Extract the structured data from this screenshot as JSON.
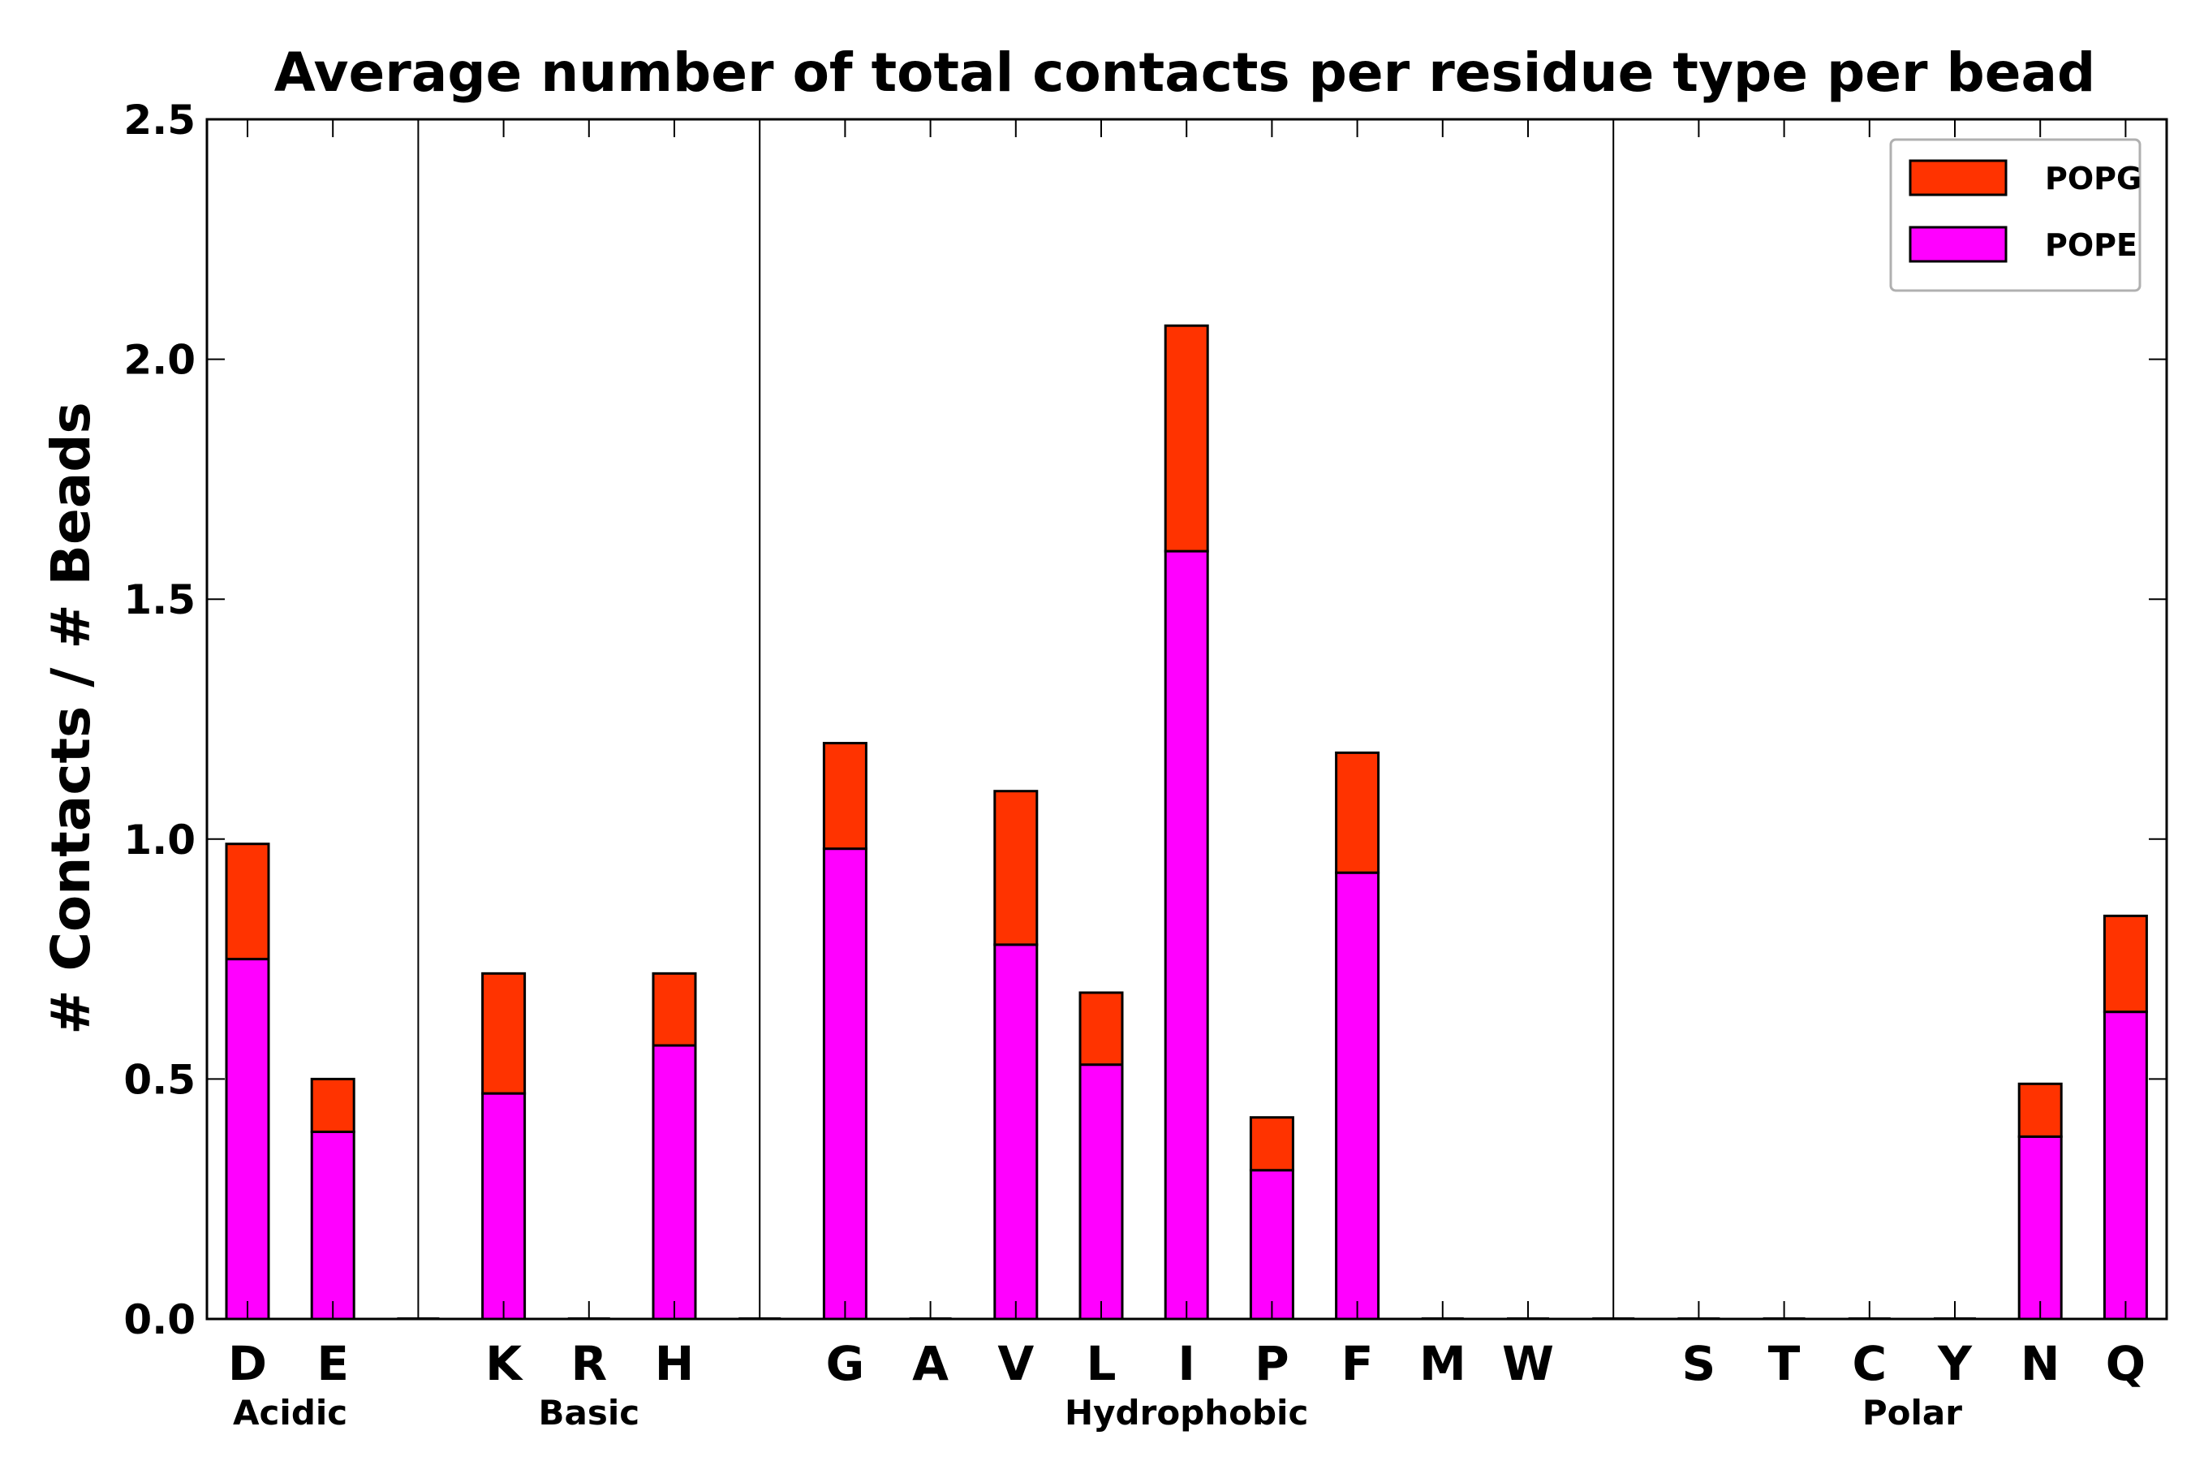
{
  "chart_data": {
    "type": "bar",
    "stacked": true,
    "title": "Average number of total contacts per residue type per bead",
    "xlabel": "",
    "ylabel": "# Contacts / # Beads",
    "ylim": [
      0,
      2.5
    ],
    "yticks": [
      "0.0",
      "0.5",
      "1.0",
      "1.5",
      "2.0",
      "2.5"
    ],
    "grid": false,
    "legend_position": "top-right",
    "categories": [
      "D",
      "E",
      "K",
      "R",
      "H",
      "G",
      "A",
      "V",
      "L",
      "I",
      "P",
      "F",
      "M",
      "W",
      "S",
      "T",
      "C",
      "Y",
      "N",
      "Q"
    ],
    "groups": [
      {
        "name": "Acidic",
        "members": [
          "D",
          "E"
        ]
      },
      {
        "name": "Basic",
        "members": [
          "K",
          "R",
          "H"
        ]
      },
      {
        "name": "Hydrophobic",
        "members": [
          "G",
          "A",
          "V",
          "L",
          "I",
          "P",
          "F",
          "M",
          "W"
        ]
      },
      {
        "name": "Polar",
        "members": [
          "S",
          "T",
          "C",
          "Y",
          "N",
          "Q"
        ]
      }
    ],
    "series": [
      {
        "name": "POPE",
        "color": "#ff00ff",
        "values": [
          0.75,
          0.39,
          0.47,
          0.0,
          0.57,
          0.98,
          0.0,
          0.78,
          0.53,
          1.6,
          0.31,
          0.93,
          0.0,
          0.0,
          0.0,
          0.0,
          0.0,
          0.0,
          0.38,
          0.64
        ]
      },
      {
        "name": "POPG",
        "color": "#ff3300",
        "values": [
          0.24,
          0.11,
          0.25,
          0.0,
          0.15,
          0.22,
          0.0,
          0.32,
          0.15,
          0.47,
          0.11,
          0.25,
          0.0,
          0.0,
          0.0,
          0.0,
          0.0,
          0.0,
          0.11,
          0.2
        ]
      }
    ],
    "legend_order": [
      "POPG",
      "POPE"
    ]
  }
}
